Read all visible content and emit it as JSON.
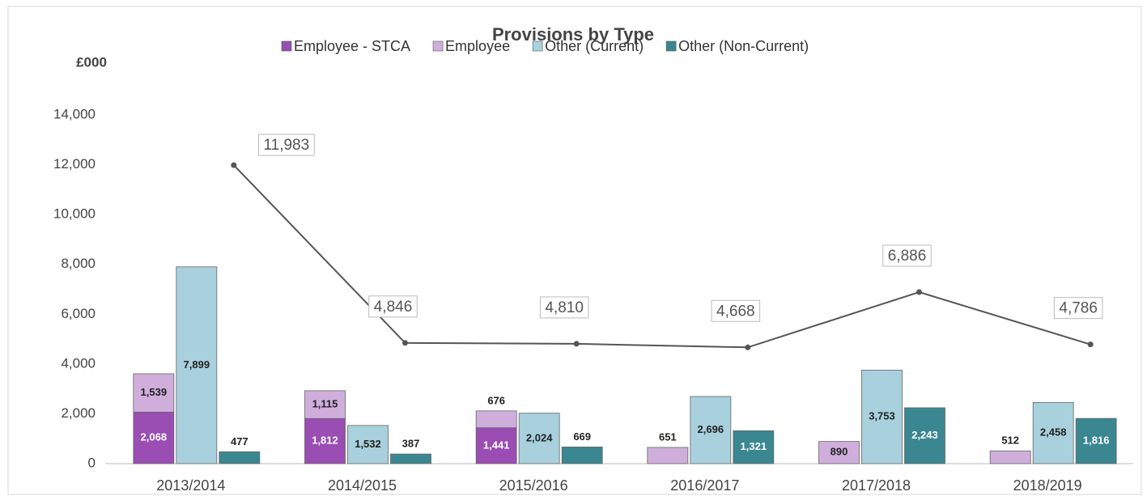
{
  "chart_data": {
    "type": "bar",
    "title": "Provisions by Type",
    "y_label": "£000",
    "categories": [
      "2013/2014",
      "2014/2015",
      "2015/2016",
      "2016/2017",
      "2017/2018",
      "2018/2019"
    ],
    "series": [
      {
        "name": "Employee - STCA",
        "color": "#9a4db3",
        "stack": "a",
        "values": [
          2068,
          1812,
          1441,
          null,
          null,
          null
        ],
        "value_labels": [
          "2,068",
          "1,812",
          "1,441",
          null,
          null,
          null
        ]
      },
      {
        "name": "Employee",
        "color": "#cfaedc",
        "stack": "a",
        "values": [
          1539,
          1115,
          676,
          651,
          890,
          512
        ],
        "value_labels": [
          "1,539",
          "1,115",
          "676",
          "651",
          "890",
          "512"
        ]
      },
      {
        "name": "Other (Current)",
        "color": "#a8d0dd",
        "stack": "b",
        "values": [
          7899,
          1532,
          2024,
          2696,
          3753,
          2458
        ],
        "value_labels": [
          "7,899",
          "1,532",
          "2,024",
          "2,696",
          "3,753",
          "2,458"
        ]
      },
      {
        "name": "Other (Non-Current)",
        "color": "#3b8791",
        "stack": "c",
        "values": [
          477,
          387,
          669,
          1321,
          2243,
          1816
        ],
        "value_labels": [
          "477",
          "387",
          "669",
          "1,321",
          "2,243",
          "1,816"
        ]
      }
    ],
    "totals": {
      "type": "line",
      "color": "#555555",
      "values": [
        11983,
        4846,
        4810,
        4668,
        6886,
        4786
      ],
      "value_labels": [
        "11,983",
        "4,846",
        "4,810",
        "4,668",
        "6,886",
        "4,786"
      ]
    },
    "ylim": [
      0,
      14000
    ],
    "yticks": [
      0,
      {
        "value": 2000,
        "label": "2,000"
      },
      {
        "value": 4000,
        "label": "4,000"
      },
      {
        "value": 6000,
        "label": "6,000"
      },
      {
        "value": 8000,
        "label": "8,000"
      },
      {
        "value": 10000,
        "label": "10,000"
      },
      {
        "value": 12000,
        "label": "12,000"
      },
      {
        "value": 14000,
        "label": "14,000"
      }
    ],
    "grid": false
  }
}
